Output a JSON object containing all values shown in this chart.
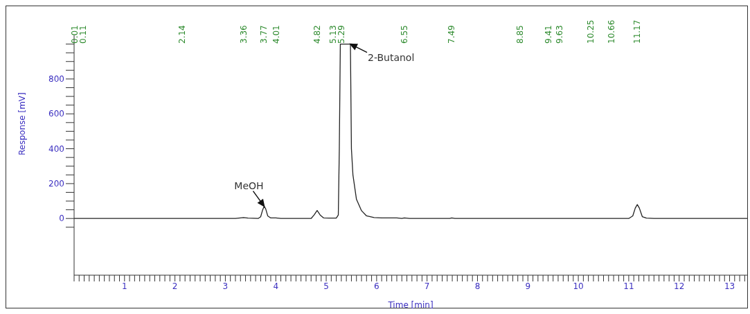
{
  "chart_data": {
    "type": "line",
    "xlabel": "Time [min]",
    "ylabel": "Response [mV]",
    "x": [
      0,
      0.5,
      1,
      2,
      3,
      3.2,
      3.3,
      3.36,
      3.45,
      3.65,
      3.7,
      3.74,
      3.77,
      3.8,
      3.84,
      3.9,
      4.0,
      4.1,
      4.7,
      4.76,
      4.82,
      4.88,
      4.95,
      5.05,
      5.2,
      5.24,
      5.26,
      5.28,
      5.48,
      5.5,
      5.53,
      5.6,
      5.7,
      5.8,
      5.95,
      6.1,
      6.4,
      6.5,
      6.55,
      6.65,
      7.45,
      7.49,
      7.55,
      9,
      11.0,
      11.08,
      11.13,
      11.17,
      11.21,
      11.27,
      11.35,
      11.5,
      12.5,
      13.35
    ],
    "series": [
      {
        "color": "#222222",
        "values": [
          0,
          0,
          0,
          0,
          0,
          0,
          3,
          5,
          2,
          0,
          10,
          50,
          70,
          55,
          15,
          3,
          3,
          0,
          0,
          20,
          46,
          20,
          3,
          2,
          2,
          20,
          400,
          1000,
          1000,
          400,
          250,
          110,
          45,
          15,
          5,
          3,
          3,
          0,
          3,
          0,
          0,
          3,
          0,
          0,
          0,
          15,
          60,
          80,
          60,
          10,
          2,
          0,
          0,
          0
        ]
      }
    ],
    "xlim": [
      0,
      13.35
    ],
    "ylim": [
      -325,
      1050
    ],
    "xticks": [
      {
        "value": 0,
        "label": null
      },
      {
        "value": 0.1,
        "label": null
      },
      {
        "value": 0.2,
        "label": null
      },
      {
        "value": 0.3,
        "label": null
      },
      {
        "value": 0.4,
        "label": null
      },
      {
        "value": 0.5,
        "label": null
      },
      {
        "value": 0.6,
        "label": null
      },
      {
        "value": 0.7,
        "label": null
      },
      {
        "value": 0.8,
        "label": null
      },
      {
        "value": 0.9,
        "label": null
      },
      1,
      {
        "value": 1.1,
        "label": null
      },
      {
        "value": 1.2,
        "label": null
      },
      {
        "value": 1.3,
        "label": null
      },
      {
        "value": 1.4,
        "label": null
      },
      {
        "value": 1.5,
        "label": null
      },
      {
        "value": 1.6,
        "label": null
      },
      {
        "value": 1.7,
        "label": null
      },
      {
        "value": 1.8,
        "label": null
      },
      {
        "value": 1.9,
        "label": null
      },
      2,
      {
        "value": 2.1,
        "label": null
      },
      {
        "value": 2.2,
        "label": null
      },
      {
        "value": 2.3,
        "label": null
      },
      {
        "value": 2.4,
        "label": null
      },
      {
        "value": 2.5,
        "label": null
      },
      {
        "value": 2.6,
        "label": null
      },
      {
        "value": 2.7,
        "label": null
      },
      {
        "value": 2.8,
        "label": null
      },
      {
        "value": 2.9,
        "label": null
      },
      3,
      {
        "value": 3.1,
        "label": null
      },
      {
        "value": 3.2,
        "label": null
      },
      {
        "value": 3.3,
        "label": null
      },
      {
        "value": 3.4,
        "label": null
      },
      {
        "value": 3.5,
        "label": null
      },
      {
        "value": 3.6,
        "label": null
      },
      {
        "value": 3.7,
        "label": null
      },
      {
        "value": 3.8,
        "label": null
      },
      {
        "value": 3.9,
        "label": null
      },
      4,
      {
        "value": 4.1,
        "label": null
      },
      {
        "value": 4.2,
        "label": null
      },
      {
        "value": 4.3,
        "label": null
      },
      {
        "value": 4.4,
        "label": null
      },
      {
        "value": 4.5,
        "label": null
      },
      {
        "value": 4.6,
        "label": null
      },
      {
        "value": 4.7,
        "label": null
      },
      {
        "value": 4.8,
        "label": null
      },
      {
        "value": 4.9,
        "label": null
      },
      5,
      {
        "value": 5.1,
        "label": null
      },
      {
        "value": 5.2,
        "label": null
      },
      {
        "value": 5.3,
        "label": null
      },
      {
        "value": 5.4,
        "label": null
      },
      {
        "value": 5.5,
        "label": null
      },
      {
        "value": 5.6,
        "label": null
      },
      {
        "value": 5.7,
        "label": null
      },
      {
        "value": 5.8,
        "label": null
      },
      {
        "value": 5.9,
        "label": null
      },
      6,
      {
        "value": 6.1,
        "label": null
      },
      {
        "value": 6.2,
        "label": null
      },
      {
        "value": 6.3,
        "label": null
      },
      {
        "value": 6.4,
        "label": null
      },
      {
        "value": 6.5,
        "label": null
      },
      {
        "value": 6.6,
        "label": null
      },
      {
        "value": 6.7,
        "label": null
      },
      {
        "value": 6.8,
        "label": null
      },
      {
        "value": 6.9,
        "label": null
      },
      7,
      {
        "value": 7.1,
        "label": null
      },
      {
        "value": 7.2,
        "label": null
      },
      {
        "value": 7.3,
        "label": null
      },
      {
        "value": 7.4,
        "label": null
      },
      {
        "value": 7.5,
        "label": null
      },
      {
        "value": 7.6,
        "label": null
      },
      {
        "value": 7.7,
        "label": null
      },
      {
        "value": 7.8,
        "label": null
      },
      {
        "value": 7.9,
        "label": null
      },
      8,
      {
        "value": 8.1,
        "label": null
      },
      {
        "value": 8.2,
        "label": null
      },
      {
        "value": 8.3,
        "label": null
      },
      {
        "value": 8.4,
        "label": null
      },
      {
        "value": 8.5,
        "label": null
      },
      {
        "value": 8.6,
        "label": null
      },
      {
        "value": 8.7,
        "label": null
      },
      {
        "value": 8.8,
        "label": null
      },
      {
        "value": 8.9,
        "label": null
      },
      9,
      {
        "value": 9.1,
        "label": null
      },
      {
        "value": 9.2,
        "label": null
      },
      {
        "value": 9.3,
        "label": null
      },
      {
        "value": 9.4,
        "label": null
      },
      {
        "value": 9.5,
        "label": null
      },
      {
        "value": 9.6,
        "label": null
      },
      {
        "value": 9.7,
        "label": null
      },
      {
        "value": 9.8,
        "label": null
      },
      {
        "value": 9.9,
        "label": null
      },
      10,
      {
        "value": 10.1,
        "label": null
      },
      {
        "value": 10.2,
        "label": null
      },
      {
        "value": 10.3,
        "label": null
      },
      {
        "value": 10.4,
        "label": null
      },
      {
        "value": 10.5,
        "label": null
      },
      {
        "value": 10.6,
        "label": null
      },
      {
        "value": 10.7,
        "label": null
      },
      {
        "value": 10.8,
        "label": null
      },
      {
        "value": 10.9,
        "label": null
      },
      11,
      {
        "value": 11.1,
        "label": null
      },
      {
        "value": 11.2,
        "label": null
      },
      {
        "value": 11.3,
        "label": null
      },
      {
        "value": 11.4,
        "label": null
      },
      {
        "value": 11.5,
        "label": null
      },
      {
        "value": 11.6,
        "label": null
      },
      {
        "value": 11.7,
        "label": null
      },
      {
        "value": 11.8,
        "label": null
      },
      {
        "value": 11.9,
        "label": null
      },
      12,
      {
        "value": 12.1,
        "label": null
      },
      {
        "value": 12.2,
        "label": null
      },
      {
        "value": 12.3,
        "label": null
      },
      {
        "value": 12.4,
        "label": null
      },
      {
        "value": 12.5,
        "label": null
      },
      {
        "value": 12.6,
        "label": null
      },
      {
        "value": 12.7,
        "label": null
      },
      {
        "value": 12.8,
        "label": null
      },
      {
        "value": 12.9,
        "label": null
      },
      13,
      {
        "value": 13.1,
        "label": null
      },
      {
        "value": 13.2,
        "label": null
      },
      {
        "value": 13.3,
        "label": null
      }
    ],
    "yticks": [
      {
        "value": -50,
        "label": null
      },
      0,
      {
        "value": 50,
        "label": null
      },
      {
        "value": 100,
        "label": null
      },
      {
        "value": 150,
        "label": null
      },
      200,
      {
        "value": 250,
        "label": null
      },
      {
        "value": 300,
        "label": null
      },
      {
        "value": 350,
        "label": null
      },
      400,
      {
        "value": 450,
        "label": null
      },
      {
        "value": 500,
        "label": null
      },
      {
        "value": 550,
        "label": null
      },
      600,
      {
        "value": 650,
        "label": null
      },
      {
        "value": 700,
        "label": null
      },
      {
        "value": 750,
        "label": null
      },
      800,
      {
        "value": 850,
        "label": null
      },
      {
        "value": 900,
        "label": null
      },
      {
        "value": 950,
        "label": null
      },
      {
        "value": 1000,
        "label": null
      }
    ],
    "annotations": [
      {
        "text": "MeOH",
        "x": 3.77,
        "y": 70
      },
      {
        "text": "2-Butanol",
        "x": 5.48,
        "y": 1000
      },
      "0.01",
      "0.11",
      "2.14",
      "3.36",
      "3.77",
      "4.01",
      "4.82",
      "5.13",
      "5.29",
      "6.55",
      "7.49",
      "8.85",
      "9.41",
      "9.63",
      "10.25",
      "10.66",
      "11.17"
    ]
  }
}
